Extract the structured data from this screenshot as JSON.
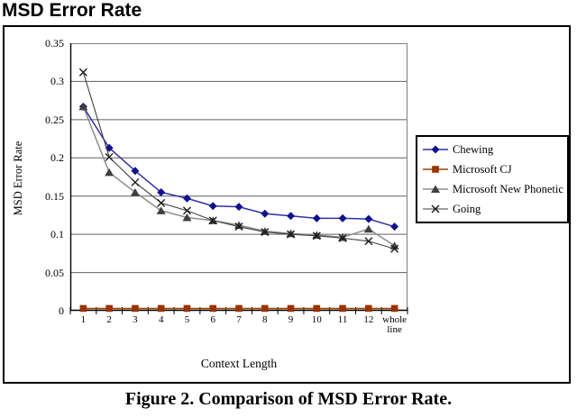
{
  "page": {
    "title": "MSD Error Rate",
    "caption": "Figure 2. Comparison of MSD Error Rate."
  },
  "chart_data": {
    "type": "line",
    "title": "MSD Error Rate",
    "xlabel": "Context Length",
    "ylabel": "MSD Error Rate",
    "ylim": [
      0,
      0.35
    ],
    "y_ticks": [
      "0",
      "0.05",
      "0.1",
      "0.15",
      "0.2",
      "0.25",
      "0.3",
      "0.35"
    ],
    "categories": [
      "1",
      "2",
      "3",
      "4",
      "5",
      "6",
      "7",
      "8",
      "9",
      "10",
      "11",
      "12",
      "whole line"
    ],
    "grid": "horizontal",
    "legend_position": "right",
    "series": [
      {
        "name": "Chewing",
        "marker": "diamond",
        "color": "#101090",
        "line_color": "#3030a8",
        "values": [
          0.267,
          0.213,
          0.183,
          0.155,
          0.147,
          0.137,
          0.136,
          0.127,
          0.124,
          0.121,
          0.121,
          0.12,
          0.11
        ]
      },
      {
        "name": "Microsoft CJ",
        "marker": "square",
        "color": "#993300",
        "line_color": "#994400",
        "values": [
          0.003,
          0.003,
          0.003,
          0.003,
          0.003,
          0.003,
          0.003,
          0.003,
          0.003,
          0.003,
          0.003,
          0.003,
          0.003
        ]
      },
      {
        "name": "Microsoft New Phonetic",
        "marker": "triangle",
        "color": "#3f3f3f",
        "line_color": "#8c8c8c",
        "values": [
          0.267,
          0.181,
          0.155,
          0.131,
          0.122,
          0.118,
          0.112,
          0.104,
          0.101,
          0.099,
          0.096,
          0.107,
          0.085
        ]
      },
      {
        "name": "Going",
        "marker": "x",
        "color": "#1a1a1a",
        "line_color": "#404040",
        "values": [
          0.312,
          0.201,
          0.168,
          0.141,
          0.131,
          0.118,
          0.11,
          0.103,
          0.1,
          0.098,
          0.095,
          0.091,
          0.081
        ]
      }
    ]
  },
  "colors": {
    "axis": "#000000",
    "gridline": "#606060",
    "plot_frame": "#808080",
    "background": "#ffffff"
  }
}
